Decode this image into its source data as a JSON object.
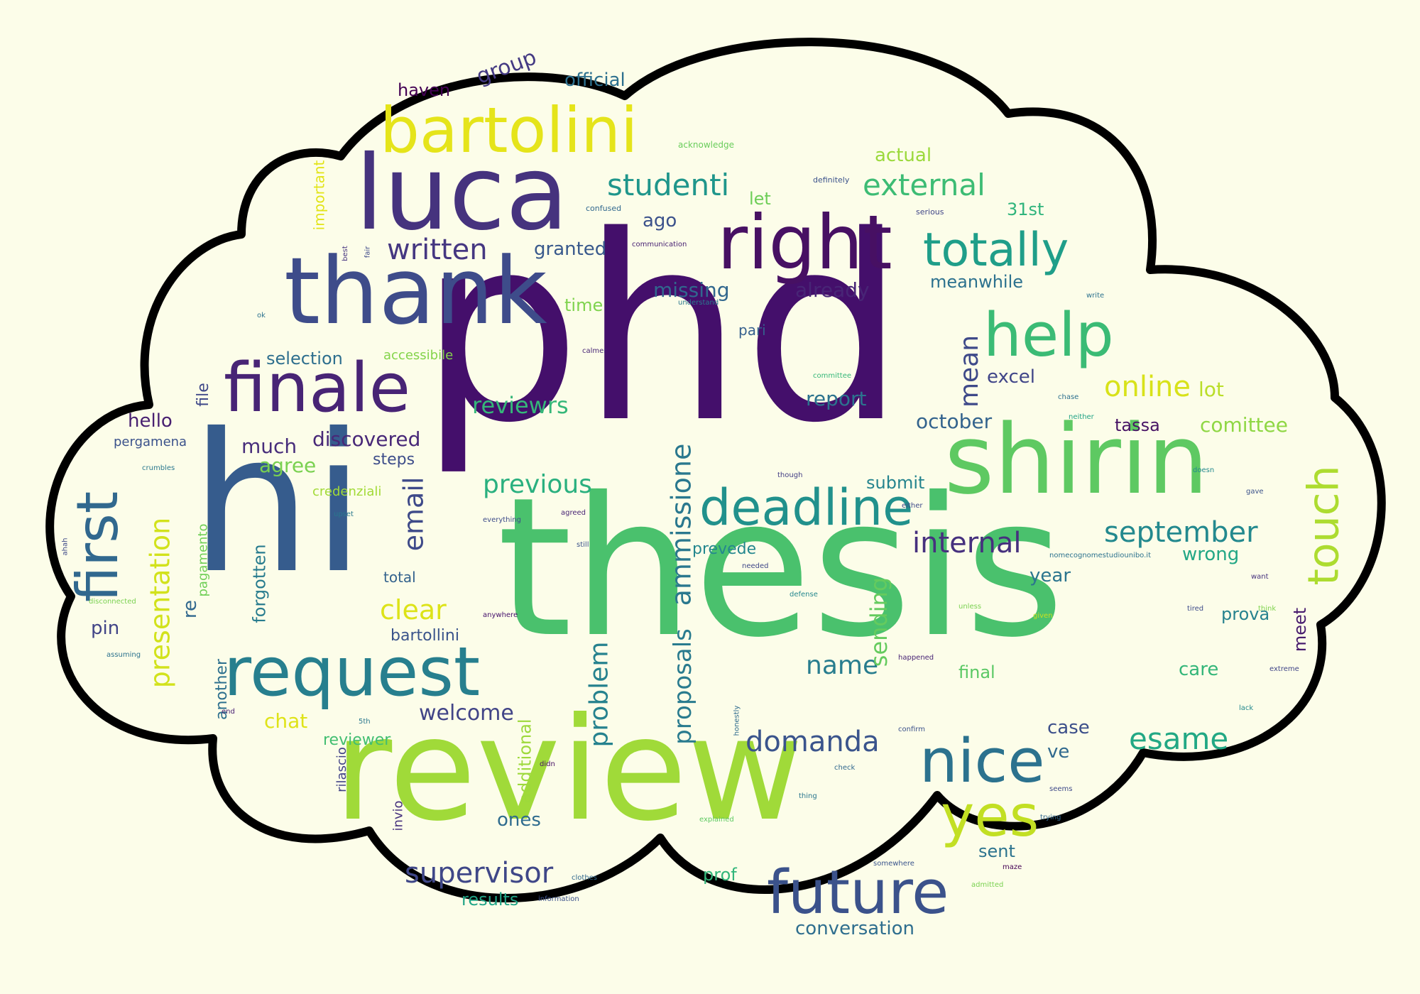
{
  "palette": {
    "background": "#fcfde9",
    "cloud_fill": "#fcfde9",
    "cloud_stroke": "#000000"
  },
  "words": [
    {
      "text": "phd",
      "color": "#440f6b"
    },
    {
      "text": "thesis",
      "color": "#4ac16d"
    },
    {
      "text": "review",
      "color": "#a0da39"
    },
    {
      "text": "hi",
      "color": "#365c8d"
    },
    {
      "text": "luca",
      "color": "#46337e"
    },
    {
      "text": "thank",
      "color": "#3e4c8a"
    },
    {
      "text": "shirin",
      "color": "#5ec962"
    },
    {
      "text": "bartolini",
      "color": "#e5e41a"
    },
    {
      "text": "right",
      "color": "#471063"
    },
    {
      "text": "request",
      "color": "#277f8e"
    },
    {
      "text": "finale",
      "color": "#482475"
    },
    {
      "text": "help",
      "color": "#3bbb75"
    },
    {
      "text": "deadline",
      "color": "#21918c"
    },
    {
      "text": "future",
      "color": "#3b528b"
    },
    {
      "text": "nice",
      "color": "#2c728e"
    },
    {
      "text": "totally",
      "color": "#1f9e89"
    },
    {
      "text": "first",
      "color": "#31688e"
    },
    {
      "text": "yes",
      "color": "#c2df23"
    },
    {
      "text": "touch",
      "color": "#addc30"
    },
    {
      "text": "external",
      "color": "#3dbc74"
    },
    {
      "text": "studenti",
      "color": "#1f968b"
    },
    {
      "text": "written",
      "color": "#453781"
    },
    {
      "text": "presentation",
      "color": "#d2e21b"
    },
    {
      "text": "ammissione",
      "color": "#2a788e"
    },
    {
      "text": "september",
      "color": "#23898e"
    },
    {
      "text": "internal",
      "color": "#46307e"
    },
    {
      "text": "supervisor",
      "color": "#3f4788"
    },
    {
      "text": "domanda",
      "color": "#3a548c"
    },
    {
      "text": "esame",
      "color": "#22a884"
    },
    {
      "text": "online",
      "color": "#d8e219"
    },
    {
      "text": "email",
      "color": "#3e4a89"
    },
    {
      "text": "previous",
      "color": "#2ab07f"
    },
    {
      "text": "problem",
      "color": "#26828e"
    },
    {
      "text": "proposals",
      "color": "#297b8e"
    },
    {
      "text": "clear",
      "color": "#dde318"
    },
    {
      "text": "welcome",
      "color": "#414487"
    },
    {
      "text": "reviewrs",
      "color": "#35b779"
    },
    {
      "text": "conversation",
      "color": "#2e6e8e"
    },
    {
      "text": "name",
      "color": "#287d8e"
    },
    {
      "text": "discovered",
      "color": "#482878"
    },
    {
      "text": "much",
      "color": "#472d7b"
    },
    {
      "text": "sending",
      "color": "#65cb5e"
    },
    {
      "text": "missing",
      "color": "#31678e"
    },
    {
      "text": "already",
      "color": "#482576"
    },
    {
      "text": "mean",
      "color": "#3e4989"
    },
    {
      "text": "october",
      "color": "#33638d"
    },
    {
      "text": "comittee",
      "color": "#8fd744"
    },
    {
      "text": "meanwhile",
      "color": "#2c718e"
    },
    {
      "text": "agree",
      "color": "#7ad151"
    },
    {
      "text": "group",
      "color": "#443a83"
    },
    {
      "text": "official",
      "color": "#2d708e"
    },
    {
      "text": "haven",
      "color": "#440154"
    },
    {
      "text": "actual",
      "color": "#9bd93c"
    },
    {
      "text": "granted",
      "color": "#38598c"
    },
    {
      "text": "ago",
      "color": "#3b518b"
    },
    {
      "text": "let",
      "color": "#6ece58"
    },
    {
      "text": "31st",
      "color": "#2fb47c"
    },
    {
      "text": "time",
      "color": "#7fd34e"
    },
    {
      "text": "pari",
      "color": "#355f8d"
    },
    {
      "text": "selection",
      "color": "#2e6f8e"
    },
    {
      "text": "accessibile",
      "color": "#84d44b"
    },
    {
      "text": "report",
      "color": "#2c738e"
    },
    {
      "text": "excel",
      "color": "#404588"
    },
    {
      "text": "lot",
      "color": "#bade28"
    },
    {
      "text": "tassa",
      "color": "#471365"
    },
    {
      "text": "hello",
      "color": "#482071"
    },
    {
      "text": "file",
      "color": "#3f4889"
    },
    {
      "text": "pergamena",
      "color": "#3b528b"
    },
    {
      "text": "steps",
      "color": "#3d4d8a"
    },
    {
      "text": "submit",
      "color": "#25848e"
    },
    {
      "text": "credenziali",
      "color": "#a2da37"
    },
    {
      "text": "prevede",
      "color": "#24878e"
    },
    {
      "text": "forgotten",
      "color": "#287c8e"
    },
    {
      "text": "total",
      "color": "#33628d"
    },
    {
      "text": "year",
      "color": "#2b758e"
    },
    {
      "text": "wrong",
      "color": "#22a785"
    },
    {
      "text": "prova",
      "color": "#26828e"
    },
    {
      "text": "meet",
      "color": "#481c6e"
    },
    {
      "text": "care",
      "color": "#34b679"
    },
    {
      "text": "final",
      "color": "#5ac864"
    },
    {
      "text": "case",
      "color": "#3c4f8a"
    },
    {
      "text": "ve",
      "color": "#30698e"
    },
    {
      "text": "sent",
      "color": "#2c738e"
    },
    {
      "text": "results",
      "color": "#20a486"
    },
    {
      "text": "prof",
      "color": "#32b67a"
    },
    {
      "text": "ones",
      "color": "#2f6c8e"
    },
    {
      "text": "additional",
      "color": "#9dd93b"
    },
    {
      "text": "reviewer",
      "color": "#42be71"
    },
    {
      "text": "chat",
      "color": "#dfe318"
    },
    {
      "text": "bartollini",
      "color": "#3a538b"
    },
    {
      "text": "another",
      "color": "#2d708e"
    },
    {
      "text": "re",
      "color": "#31688e"
    },
    {
      "text": "pin",
      "color": "#414487"
    },
    {
      "text": "pagamento",
      "color": "#70cf57"
    },
    {
      "text": "invio",
      "color": "#46317e"
    },
    {
      "text": "rilascio",
      "color": "#414287"
    },
    {
      "text": "important",
      "color": "#e2e418"
    },
    {
      "text": "acknowledge",
      "color": "#69cd5b"
    },
    {
      "text": "definitely",
      "color": "#3b528b"
    },
    {
      "text": "confused",
      "color": "#31688e"
    },
    {
      "text": "serious",
      "color": "#404688"
    },
    {
      "text": "communication",
      "color": "#482173"
    },
    {
      "text": "best",
      "color": "#463480"
    },
    {
      "text": "fair",
      "color": "#3e4989"
    },
    {
      "text": "understand",
      "color": "#2a788e"
    },
    {
      "text": "write",
      "color": "#2c728e"
    },
    {
      "text": "calmer",
      "color": "#482677"
    },
    {
      "text": "committee",
      "color": "#35b779"
    },
    {
      "text": "chase",
      "color": "#2d708e"
    },
    {
      "text": "neither",
      "color": "#20a386"
    },
    {
      "text": "doesn",
      "color": "#23898e"
    },
    {
      "text": "though",
      "color": "#433e85"
    },
    {
      "text": "either",
      "color": "#3e4a89"
    },
    {
      "text": "gave",
      "color": "#3b528b"
    },
    {
      "text": "nomecognomestudiounibo.it",
      "color": "#2c728e"
    },
    {
      "text": "needed",
      "color": "#3f4788"
    },
    {
      "text": "want",
      "color": "#46327e"
    },
    {
      "text": "defense",
      "color": "#24878e"
    },
    {
      "text": "unless",
      "color": "#7ad151"
    },
    {
      "text": "given",
      "color": "#c8e020"
    },
    {
      "text": "tired",
      "color": "#3e4c8a"
    },
    {
      "text": "think",
      "color": "#7fd34e"
    },
    {
      "text": "happened",
      "color": "#482475"
    },
    {
      "text": "extreme",
      "color": "#404588"
    },
    {
      "text": "confirm",
      "color": "#3b518b"
    },
    {
      "text": "lack",
      "color": "#23898e"
    },
    {
      "text": "honestly",
      "color": "#2f6b8e"
    },
    {
      "text": "didn",
      "color": "#471164"
    },
    {
      "text": "5th",
      "color": "#2a788e"
    },
    {
      "text": "check",
      "color": "#31688e"
    },
    {
      "text": "thing",
      "color": "#2a768e"
    },
    {
      "text": "seems",
      "color": "#3e4989"
    },
    {
      "text": "trying",
      "color": "#31668e"
    },
    {
      "text": "somewhere",
      "color": "#3a548c"
    },
    {
      "text": "explained",
      "color": "#5ec962"
    },
    {
      "text": "maze",
      "color": "#440154"
    },
    {
      "text": "clothes",
      "color": "#31688e"
    },
    {
      "text": "information",
      "color": "#3b518b"
    },
    {
      "text": "admitted",
      "color": "#7ad151"
    },
    {
      "text": "disconnected",
      "color": "#7ad151"
    },
    {
      "text": "assuming",
      "color": "#2c728e"
    },
    {
      "text": "end",
      "color": "#482173"
    },
    {
      "text": "crumbles",
      "color": "#2a788e"
    },
    {
      "text": "ahah",
      "color": "#3e4989"
    },
    {
      "text": "upset",
      "color": "#2a788e"
    },
    {
      "text": "everything",
      "color": "#3e4c8a"
    },
    {
      "text": "agreed",
      "color": "#482475"
    },
    {
      "text": "still",
      "color": "#3b528b"
    },
    {
      "text": "anywhere",
      "color": "#440f6b"
    },
    {
      "text": "ok",
      "color": "#2c728e"
    }
  ]
}
